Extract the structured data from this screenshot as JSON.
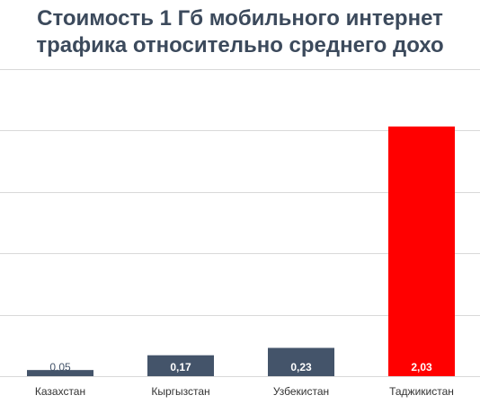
{
  "colors": {
    "title": "#3c4a5c",
    "bar_default": "#44546a",
    "bar_highlight": "#ff0000",
    "grid": "#d9d9d9",
    "label_dark": "#44546a",
    "label_light": "#ffffff",
    "axis_text": "#333333"
  },
  "chart_data": {
    "type": "bar",
    "title_lines": [
      "Стоимость 1 Гб мобильного интернет",
      "трафика относительно среднего дохо"
    ],
    "categories": [
      "Казахстан",
      "Кыргызстан",
      "Узбекистан",
      "Таджикистан"
    ],
    "values": [
      0.05,
      0.17,
      0.23,
      2.03
    ],
    "value_labels": [
      "0,05",
      "0,17",
      "0,23",
      "2,03"
    ],
    "highlight_index": 3,
    "ylim": [
      0,
      2.5
    ],
    "ytick_step": 0.5,
    "grid": true,
    "legend": "none"
  }
}
